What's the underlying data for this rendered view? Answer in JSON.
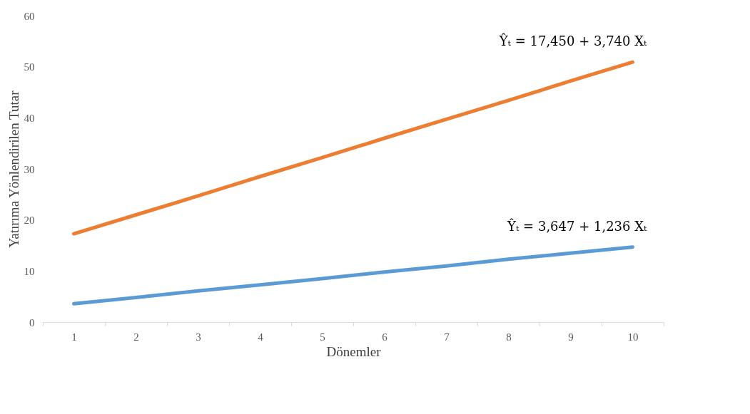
{
  "chart_data": {
    "type": "line",
    "xlabel": "Dönemler",
    "ylabel": "Yatırıma Yönlendirilen Tutar",
    "categories": [
      "1",
      "2",
      "3",
      "4",
      "5",
      "6",
      "7",
      "8",
      "9",
      "10"
    ],
    "series": [
      {
        "color": "#ed7d31",
        "values": [
          17.3,
          21.0,
          24.7,
          28.5,
          32.2,
          36.0,
          39.7,
          43.4,
          47.2,
          50.9
        ]
      },
      {
        "color": "#5b9bd5",
        "values": [
          3.6,
          4.8,
          6.1,
          7.3,
          8.5,
          9.8,
          11.0,
          12.3,
          13.5,
          14.7
        ]
      }
    ],
    "annotations": [
      "Ŷₜ = 17,450 + 3,740 Xₜ",
      "Ŷₜ = 3,647 + 1,236 Xₜ"
    ],
    "ylim": [
      0,
      60
    ],
    "yticks": [
      0,
      10,
      20,
      30,
      40,
      50,
      60
    ],
    "grid": false,
    "line_style": "solid",
    "marker": "none"
  }
}
